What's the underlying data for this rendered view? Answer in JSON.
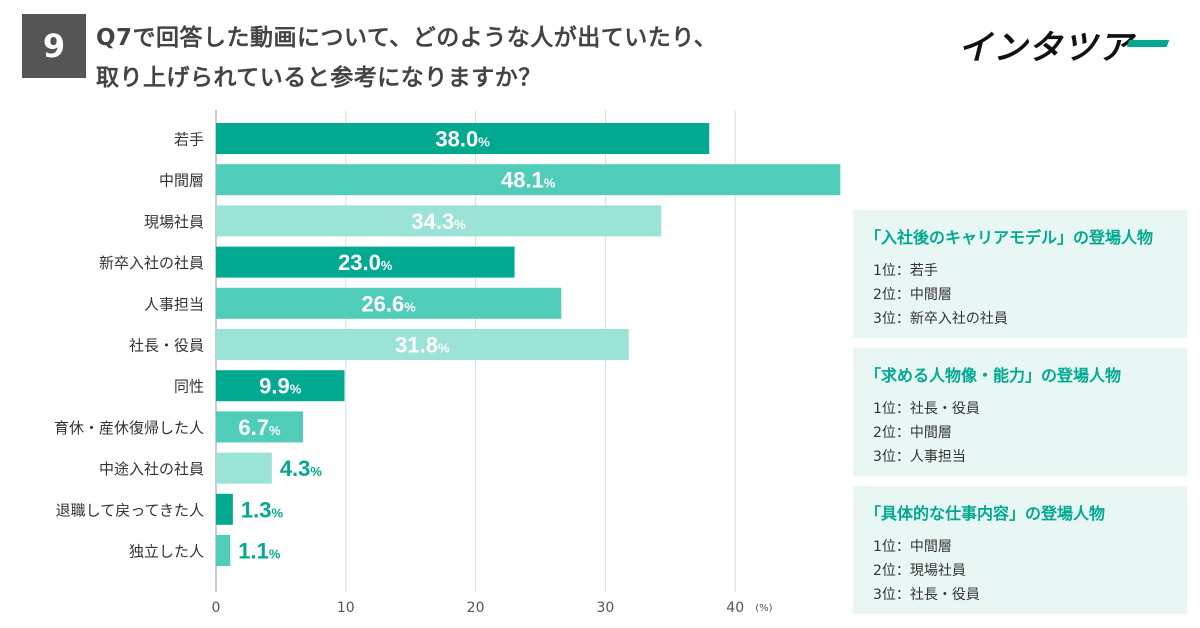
{
  "badge": "9",
  "question": {
    "line1": "Q7で回答した動画について、どのような人が出ていたり、",
    "line2": "取り上げられていると参考になりますか？"
  },
  "logo": {
    "text": "インタツア"
  },
  "colors": {
    "dark": "#00a98f",
    "mid": "#4fcdb8",
    "light": "#9ce3d7",
    "label": "#ffffff",
    "outside_label": "#00a98f",
    "panel_bg": "#e9f7f4"
  },
  "chart_data": {
    "type": "bar",
    "orientation": "horizontal",
    "unit": "%",
    "categories": [
      "若手",
      "中間層",
      "現場社員",
      "新卒入社の社員",
      "人事担当",
      "社長・役員",
      "同性",
      "育休・産休復帰した人",
      "中途入社の社員",
      "退職して戻ってきた人",
      "独立した人"
    ],
    "values": [
      38.0,
      48.1,
      34.3,
      23.0,
      26.6,
      31.8,
      9.9,
      6.7,
      4.3,
      1.3,
      1.1
    ],
    "value_labels": [
      "38.0",
      "48.1",
      "34.3",
      "23.0",
      "26.6",
      "31.8",
      "9.9",
      "6.7",
      "4.3",
      "1.3",
      "1.1"
    ],
    "shades": [
      "dark",
      "mid",
      "light",
      "dark",
      "mid",
      "light",
      "dark",
      "mid",
      "light",
      "dark",
      "mid"
    ],
    "xlim": [
      0,
      50
    ],
    "xticks": [
      0,
      10,
      20,
      30,
      40
    ],
    "xunit_label": "(%)",
    "grid": true
  },
  "panels": [
    {
      "title": "「入社後のキャリアモデル」の登場人物",
      "items": [
        "1位：若手",
        "2位：中間層",
        "3位：新卒入社の社員"
      ]
    },
    {
      "title": "「求める人物像・能力」の登場人物",
      "items": [
        "1位：社長・役員",
        "2位：中間層",
        "3位：人事担当"
      ]
    },
    {
      "title": "「具体的な仕事内容」の登場人物",
      "items": [
        "1位：中間層",
        "2位：現場社員",
        "3位：社長・役員"
      ]
    }
  ]
}
